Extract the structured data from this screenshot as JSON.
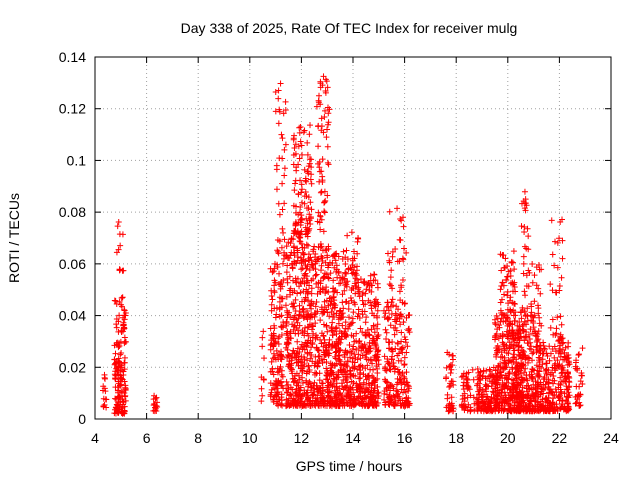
{
  "chart_data": {
    "type": "scatter",
    "title": "Day 338 of 2025, Rate Of TEC Index for receiver mulg",
    "xlabel": "GPS time / hours",
    "ylabel": "ROTI / TECUs",
    "xlim": [
      4,
      24
    ],
    "ylim": [
      0,
      0.14
    ],
    "x_ticks": [
      4,
      6,
      8,
      10,
      12,
      14,
      16,
      18,
      20,
      22,
      24
    ],
    "y_ticks": [
      0,
      0.02,
      0.04,
      0.06,
      0.08,
      0.1,
      0.12,
      0.14
    ],
    "y_tick_labels": [
      "0",
      "0.02",
      "0.04",
      "0.06",
      "0.08",
      "0.1",
      "0.12",
      "0.14"
    ],
    "grid": true,
    "marker": "plus",
    "color": "#ff0000",
    "clusters": [
      {
        "x_range": [
          4.3,
          4.45
        ],
        "y_range": [
          0.003,
          0.02
        ],
        "density": 14
      },
      {
        "x_range": [
          4.75,
          5.2
        ],
        "y_range": [
          0.002,
          0.048
        ],
        "density": 160
      },
      {
        "x_range": [
          4.85,
          5.15
        ],
        "y_range": [
          0.055,
          0.077
        ],
        "density": 12
      },
      {
        "x_range": [
          6.25,
          6.45
        ],
        "y_range": [
          0.003,
          0.011
        ],
        "density": 16
      },
      {
        "x_range": [
          10.4,
          10.6
        ],
        "y_range": [
          0.003,
          0.036
        ],
        "density": 10
      },
      {
        "x_range": [
          10.8,
          11.3
        ],
        "y_range": [
          0.005,
          0.06
        ],
        "density": 140
      },
      {
        "x_range": [
          11.0,
          11.4
        ],
        "y_range": [
          0.06,
          0.131
        ],
        "density": 40
      },
      {
        "x_range": [
          11.4,
          12.5
        ],
        "y_range": [
          0.005,
          0.07
        ],
        "density": 420
      },
      {
        "x_range": [
          11.7,
          12.4
        ],
        "y_range": [
          0.07,
          0.114
        ],
        "density": 110
      },
      {
        "x_range": [
          12.5,
          13.5
        ],
        "y_range": [
          0.005,
          0.065
        ],
        "density": 380
      },
      {
        "x_range": [
          12.6,
          13.1
        ],
        "y_range": [
          0.065,
          0.133
        ],
        "density": 70
      },
      {
        "x_range": [
          13.5,
          15.0
        ],
        "y_range": [
          0.005,
          0.056
        ],
        "density": 450
      },
      {
        "x_range": [
          13.6,
          14.2
        ],
        "y_range": [
          0.056,
          0.073
        ],
        "density": 30
      },
      {
        "x_range": [
          15.2,
          16.2
        ],
        "y_range": [
          0.005,
          0.045
        ],
        "density": 200
      },
      {
        "x_range": [
          15.3,
          16.1
        ],
        "y_range": [
          0.045,
          0.082
        ],
        "density": 35
      },
      {
        "x_range": [
          17.6,
          17.9
        ],
        "y_range": [
          0.003,
          0.026
        ],
        "density": 40
      },
      {
        "x_range": [
          18.2,
          18.7
        ],
        "y_range": [
          0.003,
          0.019
        ],
        "density": 50
      },
      {
        "x_range": [
          18.8,
          19.6
        ],
        "y_range": [
          0.003,
          0.02
        ],
        "density": 140
      },
      {
        "x_range": [
          19.5,
          20.5
        ],
        "y_range": [
          0.003,
          0.04
        ],
        "density": 320
      },
      {
        "x_range": [
          19.7,
          20.3
        ],
        "y_range": [
          0.04,
          0.068
        ],
        "density": 60
      },
      {
        "x_range": [
          20.3,
          21.2
        ],
        "y_range": [
          0.003,
          0.035
        ],
        "density": 260
      },
      {
        "x_range": [
          20.5,
          20.8
        ],
        "y_range": [
          0.035,
          0.09
        ],
        "density": 40
      },
      {
        "x_range": [
          20.8,
          21.3
        ],
        "y_range": [
          0.035,
          0.061
        ],
        "density": 30
      },
      {
        "x_range": [
          21.2,
          22.4
        ],
        "y_range": [
          0.003,
          0.03
        ],
        "density": 260
      },
      {
        "x_range": [
          21.6,
          22.2
        ],
        "y_range": [
          0.03,
          0.078
        ],
        "density": 35
      },
      {
        "x_range": [
          22.6,
          22.9
        ],
        "y_range": [
          0.005,
          0.028
        ],
        "density": 30
      }
    ]
  }
}
